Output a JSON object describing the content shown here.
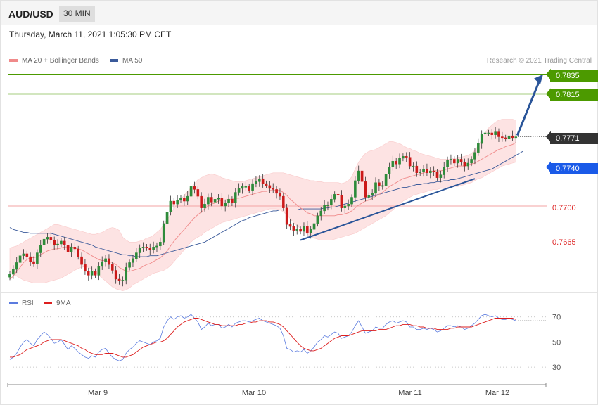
{
  "header": {
    "symbol": "AUD/USD",
    "timeframe": "30 MIN",
    "datetime": "Thursday, March 11, 2021 1:05:30 PM CET",
    "credit": "Research © 2021 Trading Central"
  },
  "legend": {
    "ma20": "MA 20 + Bollinger Bands",
    "ma50": "MA 50",
    "rsi": "RSI",
    "ma9": "9MA"
  },
  "colors": {
    "bull": "#2e8b3a",
    "bear": "#cc1a1a",
    "band": "#fde3e3",
    "ma20": "#f08a8a",
    "ma50": "#3a5a9a",
    "resistance": "#4c9a00",
    "pivot": "#1a5ae8",
    "support": "#f3a3a3",
    "current": "#333333",
    "arrow": "#2a5599",
    "rsi": "#5b7bdf",
    "rsi_ma": "#dd1f1f"
  },
  "levels": {
    "r2": "0.7835",
    "r1": "0.7815",
    "current": "0.7771",
    "pivot": "0.7740",
    "s1": "0.7700",
    "s2": "0.7665"
  },
  "chart_data": {
    "type": "candlestick",
    "y_range": [
      0.7612,
      0.7868
    ],
    "x_labels": [
      "Mar 9",
      "Mar 10",
      "Mar 11",
      "Mar 12"
    ],
    "close": [
      0.763,
      0.7635,
      0.7642,
      0.7649,
      0.7651,
      0.7648,
      0.7643,
      0.7641,
      0.7652,
      0.766,
      0.7666,
      0.7668,
      0.7665,
      0.766,
      0.7661,
      0.7664,
      0.766,
      0.7653,
      0.7658,
      0.7656,
      0.7648,
      0.764,
      0.7633,
      0.7629,
      0.7633,
      0.7629,
      0.7638,
      0.7643,
      0.7646,
      0.764,
      0.7634,
      0.7625,
      0.7623,
      0.7624,
      0.7637,
      0.7642,
      0.7646,
      0.7652,
      0.7657,
      0.7658,
      0.7657,
      0.7655,
      0.7658,
      0.7659,
      0.7663,
      0.7682,
      0.7694,
      0.7705,
      0.7702,
      0.7706,
      0.7708,
      0.7705,
      0.771,
      0.772,
      0.7717,
      0.771,
      0.7698,
      0.7702,
      0.7709,
      0.7704,
      0.7707,
      0.7708,
      0.77,
      0.7703,
      0.7707,
      0.7703,
      0.7714,
      0.7718,
      0.772,
      0.772,
      0.7716,
      0.7723,
      0.7725,
      0.7728,
      0.7723,
      0.7721,
      0.7718,
      0.7717,
      0.7713,
      0.771,
      0.7698,
      0.7681,
      0.7679,
      0.7675,
      0.7676,
      0.7674,
      0.7679,
      0.7672,
      0.7676,
      0.7682,
      0.769,
      0.7695,
      0.7701,
      0.7701,
      0.7707,
      0.7712,
      0.7711,
      0.7698,
      0.77,
      0.7702,
      0.7709,
      0.7726,
      0.7736,
      0.7725,
      0.7709,
      0.7711,
      0.7713,
      0.7724,
      0.7721,
      0.7721,
      0.7733,
      0.774,
      0.7746,
      0.7743,
      0.7749,
      0.7751,
      0.775,
      0.7741,
      0.7741,
      0.7734,
      0.7735,
      0.7738,
      0.7734,
      0.7736,
      0.7735,
      0.7729,
      0.7732,
      0.774,
      0.7747,
      0.7748,
      0.7744,
      0.7748,
      0.7745,
      0.7741,
      0.7744,
      0.7748,
      0.7755,
      0.7764,
      0.7774,
      0.7775,
      0.7775,
      0.7773,
      0.7776,
      0.7771,
      0.777,
      0.7769,
      0.7772,
      0.777,
      0.7771
    ],
    "ma20": [
      0.7625,
      0.7628,
      0.7633,
      0.7637,
      0.7642,
      0.7645,
      0.7647,
      0.7647,
      0.7648,
      0.765,
      0.7652,
      0.7654,
      0.7655,
      0.7656,
      0.7656,
      0.7657,
      0.7658,
      0.7658,
      0.7658,
      0.7657,
      0.7656,
      0.7655,
      0.7653,
      0.7651,
      0.7649,
      0.7647,
      0.7645,
      0.7644,
      0.7644,
      0.7643,
      0.7642,
      0.764,
      0.7637,
      0.7635,
      0.7633,
      0.7633,
      0.7634,
      0.7635,
      0.7636,
      0.7638,
      0.764,
      0.7641,
      0.7643,
      0.7645,
      0.7647,
      0.765,
      0.7654,
      0.7659,
      0.7664,
      0.7668,
      0.7672,
      0.7676,
      0.768,
      0.7684,
      0.7688,
      0.7691,
      0.7694,
      0.7697,
      0.77,
      0.7702,
      0.7703,
      0.7705,
      0.7706,
      0.7706,
      0.7707,
      0.7707,
      0.7708,
      0.7708,
      0.7709,
      0.771,
      0.7711,
      0.7712,
      0.7713,
      0.7714,
      0.7715,
      0.7715,
      0.7716,
      0.7716,
      0.7716,
      0.7716,
      0.7714,
      0.7711,
      0.7707,
      0.7704,
      0.7701,
      0.7698,
      0.7696,
      0.7693,
      0.7692,
      0.769,
      0.769,
      0.769,
      0.769,
      0.769,
      0.769,
      0.769,
      0.7691,
      0.7691,
      0.7692,
      0.7693,
      0.7695,
      0.7698,
      0.7701,
      0.7703,
      0.7705,
      0.7706,
      0.7708,
      0.771,
      0.7712,
      0.7714,
      0.7717,
      0.772,
      0.7722,
      0.7724,
      0.7726,
      0.7728,
      0.7729,
      0.773,
      0.7731,
      0.7732,
      0.7733,
      0.7734,
      0.7735,
      0.7735,
      0.7736,
      0.7736,
      0.7736,
      0.7737,
      0.7738,
      0.7739,
      0.774,
      0.7741,
      0.7741,
      0.7741,
      0.7742,
      0.7743,
      0.7744,
      0.7746,
      0.7748,
      0.775,
      0.7752,
      0.7754,
      0.7756,
      0.7758,
      0.7759,
      0.7761,
      0.7762,
      0.7763,
      0.7765
    ],
    "bb_upper": [
      0.7657,
      0.7658,
      0.7659,
      0.7661,
      0.7663,
      0.7665,
      0.7667,
      0.7669,
      0.7671,
      0.7673,
      0.7675,
      0.7677,
      0.7679,
      0.7681,
      0.7681,
      0.768,
      0.7679,
      0.7678,
      0.7677,
      0.7676,
      0.7675,
      0.7674,
      0.7673,
      0.7672,
      0.7671,
      0.7671,
      0.7672,
      0.7673,
      0.7675,
      0.7677,
      0.7678,
      0.7677,
      0.7675,
      0.7668,
      0.7665,
      0.7663,
      0.7663,
      0.7663,
      0.7664,
      0.7665,
      0.7667,
      0.7668,
      0.767,
      0.7673,
      0.7676,
      0.7681,
      0.7686,
      0.7692,
      0.7697,
      0.7702,
      0.7707,
      0.7711,
      0.7715,
      0.7719,
      0.7723,
      0.7727,
      0.7729,
      0.7731,
      0.7732,
      0.7733,
      0.7732,
      0.7731,
      0.7729,
      0.7728,
      0.7727,
      0.7726,
      0.7725,
      0.7725,
      0.7725,
      0.7726,
      0.7727,
      0.7728,
      0.7729,
      0.773,
      0.7731,
      0.7732,
      0.7733,
      0.7734,
      0.7734,
      0.7734,
      0.7734,
      0.7733,
      0.7732,
      0.7731,
      0.773,
      0.7729,
      0.7728,
      0.7727,
      0.7726,
      0.7726,
      0.7725,
      0.7725,
      0.7724,
      0.7724,
      0.7724,
      0.7724,
      0.7724,
      0.7723,
      0.7724,
      0.7726,
      0.773,
      0.7738,
      0.7745,
      0.775,
      0.7754,
      0.7756,
      0.7757,
      0.7758,
      0.776,
      0.7762,
      0.7764,
      0.7766,
      0.7766,
      0.7765,
      0.7764,
      0.7762,
      0.776,
      0.7759,
      0.7757,
      0.7756,
      0.7754,
      0.7753,
      0.7752,
      0.7751,
      0.775,
      0.7749,
      0.7748,
      0.7748,
      0.7748,
      0.7748,
      0.7749,
      0.775,
      0.775,
      0.7751,
      0.7752,
      0.7754,
      0.7757,
      0.7762,
      0.7768,
      0.7775,
      0.778,
      0.7783,
      0.7786,
      0.7788,
      0.7789,
      0.7789,
      0.7789,
      0.7789,
      0.7788
    ],
    "bb_lower": [
      0.7633,
      0.763,
      0.7628,
      0.7626,
      0.7624,
      0.7623,
      0.7622,
      0.7621,
      0.7621,
      0.7621,
      0.7621,
      0.7622,
      0.7623,
      0.7624,
      0.7625,
      0.7626,
      0.7628,
      0.763,
      0.7632,
      0.7634,
      0.7636,
      0.7637,
      0.7638,
      0.7637,
      0.7635,
      0.7632,
      0.7629,
      0.7626,
      0.7623,
      0.762,
      0.7617,
      0.7615,
      0.7614,
      0.7613,
      0.7614,
      0.7616,
      0.7619,
      0.7621,
      0.7623,
      0.7625,
      0.7627,
      0.7629,
      0.7631,
      0.7632,
      0.7633,
      0.7634,
      0.7636,
      0.7639,
      0.7643,
      0.7647,
      0.7651,
      0.7655,
      0.7659,
      0.7663,
      0.7666,
      0.7668,
      0.767,
      0.7673,
      0.7675,
      0.7677,
      0.7679,
      0.7681,
      0.7683,
      0.7684,
      0.7685,
      0.7686,
      0.7687,
      0.7688,
      0.7689,
      0.769,
      0.7691,
      0.7692,
      0.7693,
      0.7694,
      0.7695,
      0.7696,
      0.7697,
      0.7697,
      0.7697,
      0.7696,
      0.7694,
      0.7691,
      0.7687,
      0.7683,
      0.768,
      0.7677,
      0.7674,
      0.7671,
      0.7669,
      0.7667,
      0.7666,
      0.7665,
      0.7665,
      0.7665,
      0.7665,
      0.7666,
      0.7667,
      0.7668,
      0.7669,
      0.767,
      0.7671,
      0.7672,
      0.7674,
      0.7676,
      0.7678,
      0.768,
      0.7682,
      0.7684,
      0.7686,
      0.7688,
      0.769,
      0.7693,
      0.7696,
      0.7699,
      0.7702,
      0.7705,
      0.7707,
      0.7709,
      0.7711,
      0.7712,
      0.7713,
      0.7714,
      0.7715,
      0.7716,
      0.7717,
      0.7717,
      0.7718,
      0.7718,
      0.7718,
      0.7719,
      0.772,
      0.772,
      0.7721,
      0.7722,
      0.7723,
      0.7724,
      0.7726,
      0.7728,
      0.7729,
      0.7731,
      0.7733,
      0.7735,
      0.7737,
      0.7739,
      0.7741,
      0.7742,
      0.7743,
      0.7744,
      0.7745
    ],
    "ma50": [
      0.7678,
      0.7676,
      0.7675,
      0.7674,
      0.7673,
      0.7673,
      0.7672,
      0.7672,
      0.7672,
      0.7672,
      0.7672,
      0.7672,
      0.7672,
      0.7671,
      0.767,
      0.7669,
      0.7668,
      0.7667,
      0.7666,
      0.7665,
      0.7664,
      0.7663,
      0.7662,
      0.7661,
      0.766,
      0.7658,
      0.7657,
      0.7656,
      0.7655,
      0.7654,
      0.7653,
      0.7652,
      0.7651,
      0.765,
      0.765,
      0.7649,
      0.7649,
      0.7648,
      0.7648,
      0.7648,
      0.7648,
      0.7649,
      0.7649,
      0.7649,
      0.765,
      0.7651,
      0.7652,
      0.7653,
      0.7654,
      0.7655,
      0.7656,
      0.7657,
      0.7658,
      0.7659,
      0.766,
      0.7661,
      0.7662,
      0.7663,
      0.7665,
      0.7667,
      0.7669,
      0.7671,
      0.7673,
      0.7675,
      0.7677,
      0.7679,
      0.7681,
      0.7683,
      0.7685,
      0.7686,
      0.7688,
      0.7689,
      0.769,
      0.7691,
      0.7692,
      0.7693,
      0.7694,
      0.7695,
      0.7695,
      0.7696,
      0.7696,
      0.7696,
      0.7696,
      0.7696,
      0.7696,
      0.7697,
      0.7697,
      0.7697,
      0.7697,
      0.7697,
      0.7697,
      0.7697,
      0.7698,
      0.7698,
      0.7699,
      0.7699,
      0.77,
      0.7701,
      0.7702,
      0.7703,
      0.7704,
      0.7705,
      0.7706,
      0.7707,
      0.7708,
      0.7709,
      0.771,
      0.7711,
      0.7712,
      0.7713,
      0.7714,
      0.7715,
      0.7716,
      0.7717,
      0.7718,
      0.7719,
      0.7719,
      0.772,
      0.7721,
      0.7722,
      0.7722,
      0.7723,
      0.7723,
      0.7724,
      0.7724,
      0.7725,
      0.7725,
      0.7726,
      0.7726,
      0.7727,
      0.7727,
      0.7728,
      0.7729,
      0.773,
      0.7731,
      0.7732,
      0.7733,
      0.7734,
      0.7735,
      0.7736,
      0.7737,
      0.7738,
      0.774,
      0.7742,
      0.7744,
      0.7746,
      0.7748,
      0.775,
      0.7752,
      0.7754,
      0.7756
    ],
    "trendline": [
      [
        0.7665,
        0.7728
      ]
    ],
    "target": [
      0.7771,
      0.7835
    ],
    "rsi": {
      "ticks": [
        70,
        50,
        30
      ],
      "y_range": [
        20,
        76
      ],
      "rsi": [
        36,
        38,
        41,
        46,
        50,
        52,
        49,
        47,
        52,
        55,
        58,
        56,
        53,
        49,
        50,
        52,
        48,
        44,
        47,
        45,
        42,
        40,
        38,
        37,
        39,
        38,
        42,
        44,
        45,
        41,
        38,
        36,
        35,
        36,
        41,
        44,
        46,
        49,
        51,
        50,
        49,
        48,
        50,
        51,
        53,
        62,
        67,
        70,
        68,
        70,
        71,
        69,
        70,
        72,
        69,
        66,
        60,
        62,
        65,
        63,
        64,
        64,
        61,
        62,
        64,
        62,
        65,
        66,
        67,
        67,
        66,
        67,
        68,
        69,
        67,
        66,
        65,
        64,
        63,
        61,
        55,
        45,
        44,
        42,
        43,
        42,
        44,
        41,
        43,
        46,
        50,
        52,
        55,
        54,
        56,
        58,
        57,
        53,
        54,
        55,
        58,
        63,
        67,
        62,
        57,
        58,
        59,
        62,
        61,
        61,
        64,
        66,
        67,
        65,
        66,
        67,
        66,
        62,
        62,
        60,
        60,
        61,
        60,
        61,
        60,
        58,
        59,
        61,
        63,
        63,
        62,
        63,
        62,
        60,
        61,
        63,
        65,
        68,
        71,
        72,
        71,
        70,
        71,
        69,
        68,
        68,
        69,
        68,
        67
      ],
      "ma9": [
        38,
        38,
        39,
        40,
        42,
        44,
        45,
        46,
        47,
        48,
        50,
        51,
        52,
        52,
        52,
        52,
        51,
        50,
        49,
        48,
        47,
        45,
        44,
        42,
        41,
        40,
        40,
        40,
        41,
        41,
        41,
        40,
        39,
        38,
        38,
        39,
        40,
        42,
        44,
        46,
        47,
        48,
        49,
        50,
        50,
        51,
        53,
        56,
        59,
        62,
        64,
        66,
        67,
        68,
        69,
        69,
        68,
        67,
        66,
        65,
        64,
        64,
        63,
        63,
        63,
        63,
        63,
        64,
        64,
        65,
        65,
        66,
        66,
        67,
        67,
        67,
        66,
        66,
        65,
        64,
        62,
        59,
        56,
        53,
        50,
        47,
        45,
        44,
        43,
        43,
        44,
        45,
        47,
        49,
        51,
        53,
        54,
        55,
        55,
        55,
        56,
        57,
        58,
        59,
        59,
        59,
        59,
        59,
        60,
        60,
        60,
        61,
        62,
        63,
        63,
        64,
        64,
        64,
        63,
        63,
        62,
        62,
        61,
        61,
        61,
        60,
        60,
        60,
        60,
        61,
        61,
        62,
        62,
        62,
        62,
        62,
        63,
        64,
        65,
        66,
        67,
        68,
        69,
        69,
        69,
        69,
        69,
        69,
        68
      ]
    }
  }
}
